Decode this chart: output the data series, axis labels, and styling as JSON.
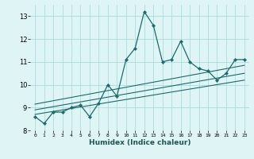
{
  "xlabel": "Humidex (Indice chaleur)",
  "bg_color": "#dff4f4",
  "grid_color": "#aadddd",
  "line_color": "#1a6b6b",
  "xlim": [
    -0.5,
    23.5
  ],
  "ylim": [
    8.0,
    13.5
  ],
  "yticks": [
    8,
    9,
    10,
    11,
    12,
    13
  ],
  "xticks": [
    0,
    1,
    2,
    3,
    4,
    5,
    6,
    7,
    8,
    9,
    10,
    11,
    12,
    13,
    14,
    15,
    16,
    17,
    18,
    19,
    20,
    21,
    22,
    23
  ],
  "main_series_x": [
    0,
    1,
    2,
    3,
    4,
    5,
    6,
    7,
    8,
    9,
    10,
    11,
    12,
    13,
    14,
    15,
    16,
    17,
    18,
    19,
    20,
    21,
    22,
    23
  ],
  "main_series_y": [
    8.6,
    8.3,
    8.8,
    8.8,
    9.0,
    9.1,
    8.6,
    9.2,
    10.0,
    9.5,
    11.1,
    11.6,
    13.2,
    12.6,
    11.0,
    11.1,
    11.9,
    11.0,
    10.7,
    10.6,
    10.2,
    10.5,
    11.1,
    11.1
  ],
  "reg_line1_x": [
    0,
    23
  ],
  "reg_line1_y": [
    8.7,
    10.2
  ],
  "reg_line2_x": [
    0,
    23
  ],
  "reg_line2_y": [
    8.9,
    10.5
  ],
  "reg_line3_x": [
    0,
    23
  ],
  "reg_line3_y": [
    9.15,
    10.85
  ]
}
